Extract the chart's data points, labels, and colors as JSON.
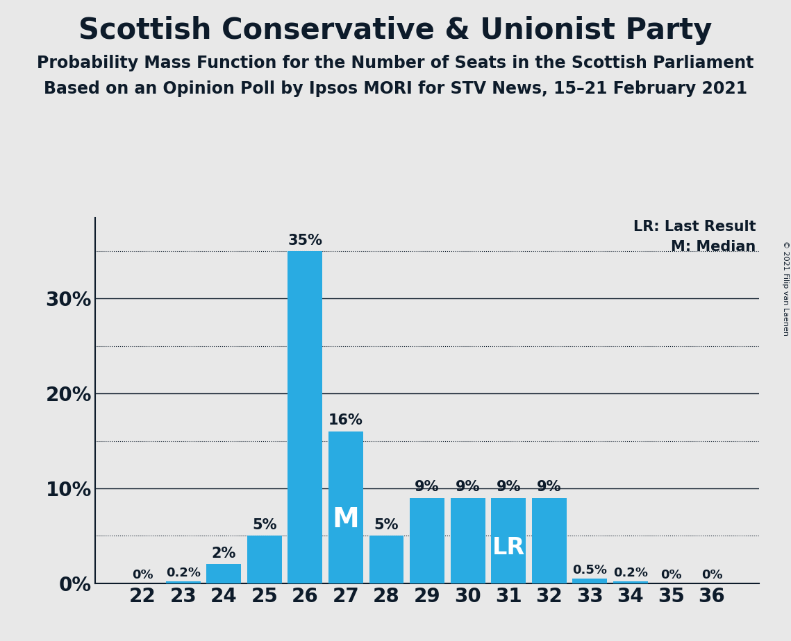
{
  "title": "Scottish Conservative & Unionist Party",
  "subtitle1": "Probability Mass Function for the Number of Seats in the Scottish Parliament",
  "subtitle2": "Based on an Opinion Poll by Ipsos MORI for STV News, 15–21 February 2021",
  "copyright": "© 2021 Filip van Laenen",
  "seats": [
    22,
    23,
    24,
    25,
    26,
    27,
    28,
    29,
    30,
    31,
    32,
    33,
    34,
    35,
    36
  ],
  "probabilities": [
    0.0,
    0.002,
    0.02,
    0.05,
    0.35,
    0.16,
    0.05,
    0.09,
    0.09,
    0.09,
    0.09,
    0.005,
    0.002,
    0.0,
    0.0
  ],
  "bar_labels": [
    "0%",
    "0.2%",
    "2%",
    "5%",
    "35%",
    "16%",
    "5%",
    "9%",
    "9%",
    "9%",
    "9%",
    "0.5%",
    "0.2%",
    "0%",
    "0%"
  ],
  "bar_color": "#29ABE2",
  "median_seat": 27,
  "lr_seat": 31,
  "background_color": "#E8E8E8",
  "text_color": "#0D1B2A",
  "ytick_majors": [
    0.0,
    0.1,
    0.2,
    0.3
  ],
  "ytick_major_labels": [
    "0%",
    "10%",
    "20%",
    "30%"
  ],
  "ytick_minors": [
    0.05,
    0.15,
    0.25,
    0.35
  ],
  "ylim": [
    0,
    0.385
  ],
  "legend_lr": "LR: Last Result",
  "legend_m": "M: Median"
}
